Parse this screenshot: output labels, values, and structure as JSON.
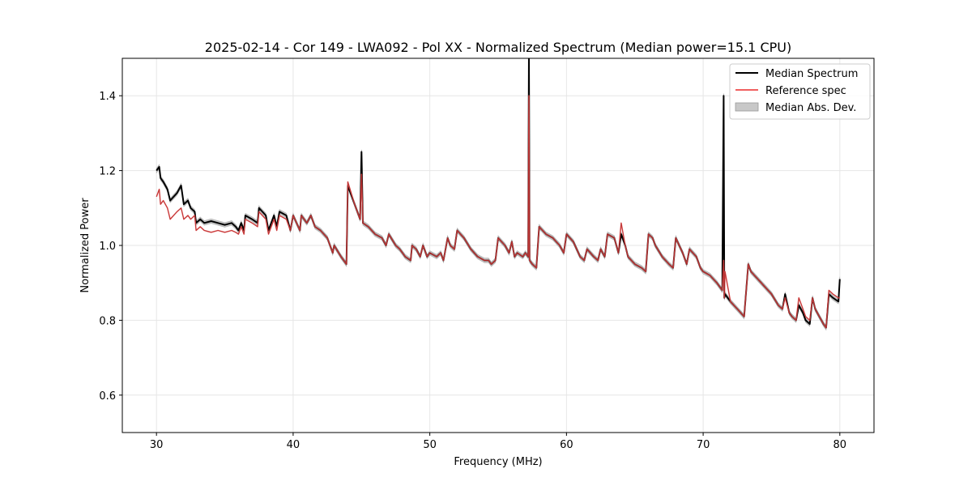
{
  "chart_data": {
    "type": "line",
    "title": "2025-02-14 - Cor 149 - LWA092 - Pol XX - Normalized Spectrum (Median power=15.1 CPU)",
    "xlabel": "Frequency (MHz)",
    "ylabel": "Normalized Power",
    "xlim": [
      27.5,
      82.5
    ],
    "ylim": [
      0.5,
      1.5
    ],
    "xticks": [
      30,
      40,
      50,
      60,
      70,
      80
    ],
    "yticks": [
      0.6,
      0.8,
      1.0,
      1.2,
      1.4
    ],
    "xtick_labels": [
      "30",
      "40",
      "50",
      "60",
      "70",
      "80"
    ],
    "ytick_labels": [
      "0.6",
      "0.8",
      "1.0",
      "1.2",
      "1.4"
    ],
    "grid": true,
    "legend_position": "top-right",
    "legend": [
      "Median Spectrum",
      "Reference spec",
      "Median Abs. Dev."
    ],
    "colors": {
      "median": "#000000",
      "reference": "#f06060",
      "mad": "#c8c8c8",
      "overlap": "#8b0000"
    },
    "series": [
      {
        "name": "Median Spectrum",
        "x": [
          30.0,
          30.2,
          30.3,
          30.5,
          30.8,
          31.0,
          31.5,
          31.8,
          32.0,
          32.3,
          32.5,
          32.8,
          32.9,
          33.2,
          33.5,
          34.0,
          34.5,
          35.0,
          35.5,
          35.8,
          36.0,
          36.2,
          36.4,
          36.5,
          37.0,
          37.4,
          37.5,
          38.0,
          38.2,
          38.6,
          38.8,
          39.0,
          39.5,
          39.8,
          40.0,
          40.5,
          40.6,
          41.0,
          41.3,
          41.6,
          42.0,
          42.5,
          42.9,
          43.0,
          43.5,
          43.9,
          44.0,
          44.5,
          44.9,
          45.0,
          45.1,
          45.5,
          46.0,
          46.5,
          46.8,
          47.0,
          47.5,
          47.8,
          48.0,
          48.2,
          48.6,
          48.7,
          49.0,
          49.3,
          49.5,
          49.8,
          50.0,
          50.5,
          50.8,
          51.0,
          51.3,
          51.5,
          51.8,
          52.0,
          52.5,
          53.0,
          53.5,
          54.0,
          54.3,
          54.5,
          54.8,
          55.0,
          55.5,
          55.8,
          56.0,
          56.2,
          56.4,
          56.8,
          57.0,
          57.2,
          57.25,
          57.3,
          57.5,
          57.8,
          58.0,
          58.5,
          59.0,
          59.5,
          59.8,
          60.0,
          60.5,
          61.0,
          61.3,
          61.5,
          62.0,
          62.3,
          62.5,
          62.8,
          63.0,
          63.5,
          63.8,
          64.0,
          64.3,
          64.5,
          65.0,
          65.5,
          65.8,
          66.0,
          66.3,
          66.5,
          67.0,
          67.5,
          67.8,
          68.0,
          68.5,
          68.8,
          69.0,
          69.5,
          69.8,
          70.0,
          70.5,
          71.0,
          71.4,
          71.5,
          71.55,
          71.6,
          72.0,
          72.5,
          73.0,
          73.3,
          73.5,
          74.0,
          74.5,
          75.0,
          75.5,
          75.8,
          76.0,
          76.3,
          76.5,
          76.8,
          77.0,
          77.3,
          77.5,
          77.8,
          78.0,
          78.2,
          78.5,
          78.8,
          79.0,
          79.2,
          79.5,
          79.9,
          80.0
        ],
        "values": [
          1.2,
          1.21,
          1.18,
          1.17,
          1.15,
          1.12,
          1.14,
          1.16,
          1.11,
          1.12,
          1.1,
          1.09,
          1.06,
          1.07,
          1.06,
          1.065,
          1.06,
          1.055,
          1.06,
          1.05,
          1.04,
          1.06,
          1.04,
          1.08,
          1.07,
          1.06,
          1.1,
          1.08,
          1.04,
          1.08,
          1.05,
          1.09,
          1.08,
          1.04,
          1.08,
          1.04,
          1.08,
          1.06,
          1.08,
          1.05,
          1.04,
          1.02,
          0.98,
          1.0,
          0.97,
          0.95,
          1.16,
          1.11,
          1.07,
          1.25,
          1.06,
          1.05,
          1.03,
          1.02,
          1.0,
          1.03,
          1.0,
          0.99,
          0.98,
          0.97,
          0.96,
          1.0,
          0.99,
          0.97,
          1.0,
          0.97,
          0.98,
          0.97,
          0.98,
          0.96,
          1.02,
          1.0,
          0.99,
          1.04,
          1.02,
          0.99,
          0.97,
          0.96,
          0.96,
          0.95,
          0.96,
          1.02,
          1.0,
          0.98,
          1.01,
          0.97,
          0.98,
          0.97,
          0.98,
          0.97,
          1.52,
          0.96,
          0.95,
          0.94,
          1.05,
          1.03,
          1.02,
          1.0,
          0.98,
          1.03,
          1.01,
          0.97,
          0.96,
          0.99,
          0.97,
          0.96,
          0.99,
          0.97,
          1.03,
          1.02,
          0.98,
          1.03,
          1.0,
          0.97,
          0.95,
          0.94,
          0.93,
          1.03,
          1.02,
          1.0,
          0.97,
          0.95,
          0.94,
          1.02,
          0.98,
          0.95,
          0.99,
          0.97,
          0.94,
          0.93,
          0.92,
          0.9,
          0.88,
          1.4,
          0.86,
          0.87,
          0.85,
          0.83,
          0.81,
          0.95,
          0.93,
          0.91,
          0.89,
          0.87,
          0.84,
          0.83,
          0.87,
          0.82,
          0.81,
          0.8,
          0.84,
          0.82,
          0.8,
          0.79,
          0.86,
          0.83,
          0.81,
          0.79,
          0.78,
          0.87,
          0.86,
          0.85,
          0.91
        ]
      },
      {
        "name": "Reference spec",
        "x": [
          30.0,
          30.2,
          30.3,
          30.5,
          30.8,
          31.0,
          31.5,
          31.8,
          32.0,
          32.3,
          32.5,
          32.8,
          32.9,
          33.2,
          33.5,
          34.0,
          34.5,
          35.0,
          35.5,
          35.8,
          36.0,
          36.2,
          36.4,
          36.5,
          37.0,
          37.4,
          37.5,
          38.0,
          38.2,
          38.6,
          38.8,
          39.0,
          39.5,
          39.8,
          40.0,
          40.5,
          40.6,
          41.0,
          41.3,
          41.6,
          42.0,
          42.5,
          42.9,
          43.0,
          43.5,
          43.9,
          44.0,
          44.5,
          44.9,
          45.0,
          45.1,
          45.5,
          46.0,
          46.5,
          46.8,
          47.0,
          47.5,
          47.8,
          48.0,
          48.2,
          48.6,
          48.7,
          49.0,
          49.3,
          49.5,
          49.8,
          50.0,
          50.5,
          50.8,
          51.0,
          51.3,
          51.5,
          51.8,
          52.0,
          52.5,
          53.0,
          53.5,
          54.0,
          54.3,
          54.5,
          54.8,
          55.0,
          55.5,
          55.8,
          56.0,
          56.2,
          56.4,
          56.8,
          57.0,
          57.2,
          57.25,
          57.3,
          57.5,
          57.8,
          58.0,
          58.5,
          59.0,
          59.5,
          59.8,
          60.0,
          60.5,
          61.0,
          61.3,
          61.5,
          62.0,
          62.3,
          62.5,
          62.8,
          63.0,
          63.5,
          63.8,
          64.0,
          64.3,
          64.5,
          65.0,
          65.5,
          65.8,
          66.0,
          66.3,
          66.5,
          67.0,
          67.5,
          67.8,
          68.0,
          68.5,
          68.8,
          69.0,
          69.5,
          69.8,
          70.0,
          70.5,
          71.0,
          71.4,
          71.5,
          71.55,
          71.6,
          72.0,
          72.5,
          73.0,
          73.3,
          73.5,
          74.0,
          74.5,
          75.0,
          75.5,
          75.8,
          76.0,
          76.3,
          76.5,
          76.8,
          77.0,
          77.3,
          77.5,
          77.8,
          78.0,
          78.2,
          78.5,
          78.8,
          79.0,
          79.2,
          79.5,
          79.9,
          80.0
        ],
        "values": [
          1.13,
          1.15,
          1.11,
          1.12,
          1.1,
          1.07,
          1.09,
          1.1,
          1.07,
          1.08,
          1.07,
          1.08,
          1.04,
          1.05,
          1.04,
          1.035,
          1.04,
          1.035,
          1.04,
          1.035,
          1.03,
          1.05,
          1.03,
          1.07,
          1.06,
          1.05,
          1.09,
          1.07,
          1.03,
          1.07,
          1.04,
          1.08,
          1.07,
          1.04,
          1.08,
          1.04,
          1.08,
          1.06,
          1.08,
          1.05,
          1.04,
          1.02,
          0.98,
          1.0,
          0.97,
          0.95,
          1.17,
          1.11,
          1.07,
          1.19,
          1.06,
          1.05,
          1.03,
          1.02,
          1.0,
          1.03,
          1.0,
          0.99,
          0.98,
          0.97,
          0.96,
          1.0,
          0.99,
          0.97,
          1.0,
          0.97,
          0.98,
          0.97,
          0.98,
          0.96,
          1.02,
          1.0,
          0.99,
          1.04,
          1.02,
          0.99,
          0.97,
          0.96,
          0.96,
          0.95,
          0.96,
          1.02,
          1.0,
          0.98,
          1.01,
          0.97,
          0.98,
          0.97,
          0.98,
          0.97,
          1.4,
          0.96,
          0.95,
          0.94,
          1.05,
          1.03,
          1.02,
          1.0,
          0.98,
          1.03,
          1.01,
          0.97,
          0.96,
          0.99,
          0.97,
          0.96,
          0.99,
          0.97,
          1.03,
          1.02,
          0.98,
          1.06,
          1.0,
          0.97,
          0.95,
          0.94,
          0.93,
          1.03,
          1.02,
          1.0,
          0.97,
          0.95,
          0.94,
          1.02,
          0.98,
          0.95,
          0.99,
          0.97,
          0.94,
          0.93,
          0.92,
          0.9,
          0.88,
          0.96,
          0.86,
          0.93,
          0.85,
          0.83,
          0.81,
          0.95,
          0.93,
          0.91,
          0.89,
          0.87,
          0.84,
          0.83,
          0.86,
          0.82,
          0.81,
          0.8,
          0.86,
          0.83,
          0.81,
          0.8,
          0.86,
          0.83,
          0.81,
          0.79,
          0.78,
          0.88,
          0.87,
          0.86,
          0.86
        ]
      }
    ],
    "mad_half_width": 0.006
  }
}
